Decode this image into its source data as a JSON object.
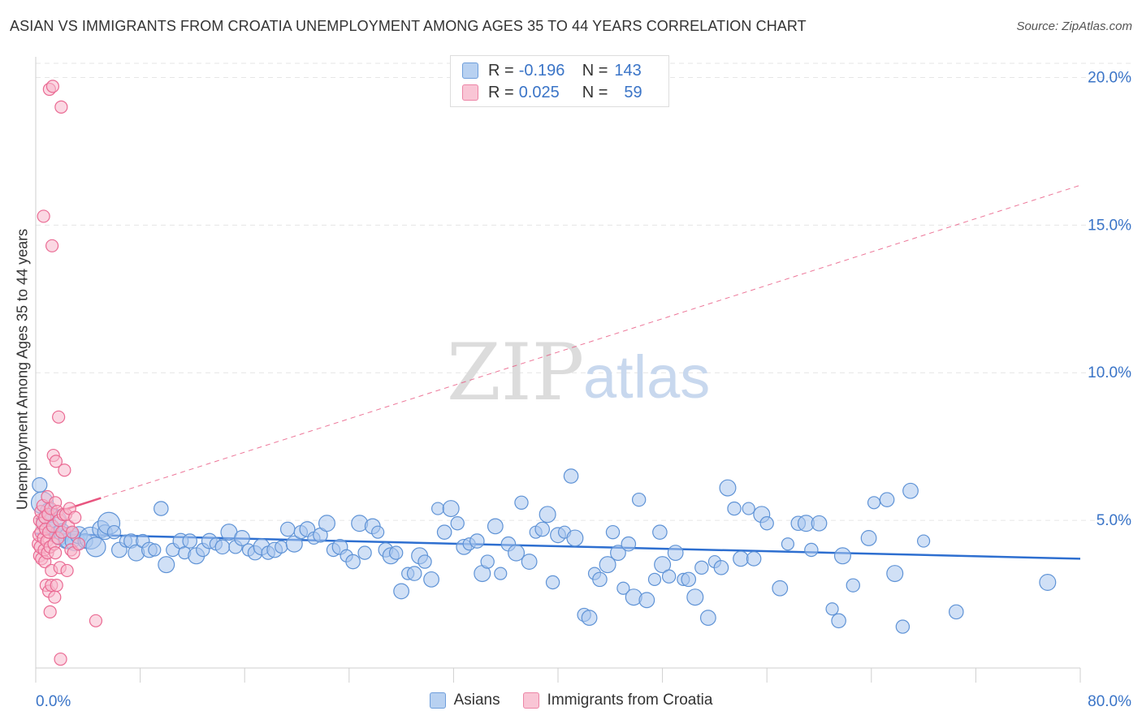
{
  "header": {
    "title": "ASIAN VS IMMIGRANTS FROM CROATIA UNEMPLOYMENT AMONG AGES 35 TO 44 YEARS CORRELATION CHART",
    "source": "Source: ZipAtlas.com"
  },
  "watermark": {
    "zip": "ZIP",
    "atlas": "atlas"
  },
  "legend_top": {
    "rows": [
      {
        "r_key": "R =",
        "r_value": "-0.196",
        "n_key": "N =",
        "n_value": "143"
      },
      {
        "r_key": "R =",
        "r_value": "0.025",
        "n_key": "N =",
        "n_value": "59"
      }
    ]
  },
  "legend_bottom": {
    "asians": "Asians",
    "croatia": "Immigrants from Croatia"
  },
  "colors": {
    "blue_fill": "#a9c7ee",
    "blue_stroke": "#5f93d6",
    "blue_line": "#2e6fd0",
    "pink_fill": "#f7b8cc",
    "pink_stroke": "#ea6a93",
    "pink_line": "#e8557f",
    "axis_text": "#3a74c7",
    "grid": "#e6e6e6"
  },
  "chart_data": {
    "type": "scatter",
    "title": "ASIAN VS IMMIGRANTS FROM CROATIA UNEMPLOYMENT AMONG AGES 35 TO 44 YEARS CORRELATION CHART",
    "xlabel": "",
    "ylabel": "Unemployment Among Ages 35 to 44 years",
    "xlim": [
      0,
      80
    ],
    "ylim": [
      0,
      20.7
    ],
    "x_tick_labels": {
      "min": "0.0%",
      "max": "80.0%"
    },
    "y_ticks": [
      5,
      10,
      15,
      20
    ],
    "y_tick_labels": [
      "5.0%",
      "10.0%",
      "15.0%",
      "20.0%"
    ],
    "series": [
      {
        "name": "Asians",
        "r": -0.196,
        "n": 143,
        "trend": {
          "x": [
            0,
            80
          ],
          "y": [
            4.55,
            3.7
          ],
          "style": "solid"
        },
        "points": [
          [
            0.3,
            6.2
          ],
          [
            0.5,
            5.6
          ],
          [
            0.8,
            4.9
          ],
          [
            1.0,
            5.3
          ],
          [
            1.3,
            4.7
          ],
          [
            1.5,
            5.0
          ],
          [
            1.8,
            4.5
          ],
          [
            2.0,
            4.6
          ],
          [
            2.3,
            4.3
          ],
          [
            2.6,
            4.4
          ],
          [
            3.0,
            4.3
          ],
          [
            3.3,
            4.5
          ],
          [
            3.8,
            4.3
          ],
          [
            4.2,
            4.4
          ],
          [
            4.6,
            4.1
          ],
          [
            5.0,
            4.7
          ],
          [
            5.3,
            4.6
          ],
          [
            5.6,
            4.9
          ],
          [
            6.0,
            4.6
          ],
          [
            6.4,
            4.0
          ],
          [
            6.9,
            4.3
          ],
          [
            7.3,
            4.3
          ],
          [
            7.7,
            3.9
          ],
          [
            8.2,
            4.3
          ],
          [
            8.7,
            4.0
          ],
          [
            9.1,
            4.0
          ],
          [
            9.6,
            5.4
          ],
          [
            10.0,
            3.5
          ],
          [
            10.5,
            4.0
          ],
          [
            11.1,
            4.3
          ],
          [
            11.4,
            3.9
          ],
          [
            11.8,
            4.3
          ],
          [
            12.3,
            3.8
          ],
          [
            12.8,
            4.0
          ],
          [
            13.3,
            4.3
          ],
          [
            13.8,
            4.2
          ],
          [
            14.3,
            4.1
          ],
          [
            14.8,
            4.6
          ],
          [
            15.3,
            4.1
          ],
          [
            15.8,
            4.4
          ],
          [
            16.3,
            4.0
          ],
          [
            16.8,
            3.9
          ],
          [
            17.3,
            4.1
          ],
          [
            17.8,
            3.9
          ],
          [
            18.3,
            4.0
          ],
          [
            18.8,
            4.1
          ],
          [
            19.3,
            4.7
          ],
          [
            19.8,
            4.2
          ],
          [
            20.3,
            4.6
          ],
          [
            20.8,
            4.7
          ],
          [
            21.3,
            4.4
          ],
          [
            21.8,
            4.5
          ],
          [
            22.3,
            4.9
          ],
          [
            22.8,
            4.0
          ],
          [
            23.3,
            4.1
          ],
          [
            23.8,
            3.8
          ],
          [
            24.3,
            3.6
          ],
          [
            24.8,
            4.9
          ],
          [
            25.2,
            3.9
          ],
          [
            25.8,
            4.8
          ],
          [
            26.2,
            4.6
          ],
          [
            26.8,
            4.0
          ],
          [
            27.2,
            3.8
          ],
          [
            27.6,
            3.9
          ],
          [
            28.0,
            2.6
          ],
          [
            28.5,
            3.2
          ],
          [
            29.0,
            3.2
          ],
          [
            29.4,
            3.8
          ],
          [
            29.8,
            3.6
          ],
          [
            30.3,
            3.0
          ],
          [
            30.8,
            5.4
          ],
          [
            31.3,
            4.6
          ],
          [
            31.8,
            5.4
          ],
          [
            32.3,
            4.9
          ],
          [
            32.8,
            4.1
          ],
          [
            33.2,
            4.2
          ],
          [
            33.8,
            4.3
          ],
          [
            34.2,
            3.2
          ],
          [
            34.6,
            3.6
          ],
          [
            35.2,
            4.8
          ],
          [
            35.6,
            3.2
          ],
          [
            36.2,
            4.2
          ],
          [
            36.8,
            3.9
          ],
          [
            37.2,
            5.6
          ],
          [
            37.8,
            3.6
          ],
          [
            38.3,
            4.6
          ],
          [
            38.8,
            4.7
          ],
          [
            39.2,
            5.2
          ],
          [
            39.6,
            2.9
          ],
          [
            40.0,
            4.5
          ],
          [
            40.5,
            4.6
          ],
          [
            41.0,
            6.5
          ],
          [
            41.3,
            4.4
          ],
          [
            42.0,
            1.8
          ],
          [
            42.4,
            1.7
          ],
          [
            42.8,
            3.2
          ],
          [
            43.2,
            3.0
          ],
          [
            43.8,
            3.5
          ],
          [
            44.2,
            4.6
          ],
          [
            44.6,
            3.9
          ],
          [
            45.0,
            2.7
          ],
          [
            45.4,
            4.2
          ],
          [
            45.8,
            2.4
          ],
          [
            46.2,
            5.7
          ],
          [
            46.8,
            2.3
          ],
          [
            47.4,
            3.0
          ],
          [
            47.8,
            4.6
          ],
          [
            48.0,
            3.5
          ],
          [
            48.5,
            3.1
          ],
          [
            49.0,
            3.9
          ],
          [
            49.6,
            3.0
          ],
          [
            50.0,
            3.0
          ],
          [
            50.5,
            2.4
          ],
          [
            51.0,
            3.4
          ],
          [
            51.5,
            1.7
          ],
          [
            52.0,
            3.6
          ],
          [
            52.5,
            3.4
          ],
          [
            53.0,
            6.1
          ],
          [
            53.5,
            5.4
          ],
          [
            54.0,
            3.7
          ],
          [
            54.6,
            5.4
          ],
          [
            55.0,
            3.7
          ],
          [
            55.6,
            5.2
          ],
          [
            56.0,
            4.9
          ],
          [
            57.0,
            2.7
          ],
          [
            57.6,
            4.2
          ],
          [
            58.4,
            4.9
          ],
          [
            59.0,
            4.9
          ],
          [
            59.4,
            4.0
          ],
          [
            60.0,
            4.9
          ],
          [
            61.0,
            2.0
          ],
          [
            61.5,
            1.6
          ],
          [
            61.8,
            3.8
          ],
          [
            62.6,
            2.8
          ],
          [
            63.8,
            4.4
          ],
          [
            64.2,
            5.6
          ],
          [
            65.2,
            5.7
          ],
          [
            65.8,
            3.2
          ],
          [
            66.4,
            1.4
          ],
          [
            67.0,
            6.0
          ],
          [
            68.0,
            4.3
          ],
          [
            70.5,
            1.9
          ],
          [
            77.5,
            2.9
          ]
        ]
      },
      {
        "name": "Immigrants from Croatia",
        "r": 0.025,
        "n": 59,
        "trend": {
          "x": [
            0,
            80
          ],
          "y": [
            5.05,
            16.35
          ],
          "style": "dashed",
          "solid_until_x": 5
        },
        "points": [
          [
            0.2,
            4.2
          ],
          [
            0.25,
            4.5
          ],
          [
            0.3,
            5.0
          ],
          [
            0.3,
            3.8
          ],
          [
            0.35,
            4.1
          ],
          [
            0.4,
            4.6
          ],
          [
            0.4,
            5.3
          ],
          [
            0.45,
            3.7
          ],
          [
            0.5,
            4.9
          ],
          [
            0.55,
            5.5
          ],
          [
            0.6,
            4.4
          ],
          [
            0.6,
            15.3
          ],
          [
            0.65,
            4.0
          ],
          [
            0.7,
            3.6
          ],
          [
            0.7,
            5.1
          ],
          [
            0.75,
            4.7
          ],
          [
            0.8,
            2.8
          ],
          [
            0.85,
            4.3
          ],
          [
            0.9,
            5.8
          ],
          [
            0.9,
            3.9
          ],
          [
            0.95,
            5.2
          ],
          [
            1.0,
            4.6
          ],
          [
            1.0,
            2.6
          ],
          [
            1.05,
            19.6
          ],
          [
            1.1,
            1.9
          ],
          [
            1.1,
            4.1
          ],
          [
            1.15,
            5.4
          ],
          [
            1.2,
            3.3
          ],
          [
            1.2,
            2.8
          ],
          [
            1.25,
            14.3
          ],
          [
            1.3,
            19.7
          ],
          [
            1.3,
            4.8
          ],
          [
            1.35,
            7.2
          ],
          [
            1.4,
            4.2
          ],
          [
            1.45,
            2.4
          ],
          [
            1.5,
            5.6
          ],
          [
            1.5,
            3.9
          ],
          [
            1.55,
            7.0
          ],
          [
            1.6,
            2.8
          ],
          [
            1.65,
            5.3
          ],
          [
            1.7,
            4.4
          ],
          [
            1.75,
            8.5
          ],
          [
            1.8,
            5.0
          ],
          [
            1.85,
            3.4
          ],
          [
            1.9,
            0.3
          ],
          [
            1.95,
            19.0
          ],
          [
            2.0,
            4.6
          ],
          [
            2.1,
            5.2
          ],
          [
            2.2,
            6.7
          ],
          [
            2.3,
            5.2
          ],
          [
            2.4,
            3.3
          ],
          [
            2.5,
            4.8
          ],
          [
            2.6,
            5.4
          ],
          [
            2.7,
            4.0
          ],
          [
            2.8,
            4.6
          ],
          [
            2.9,
            3.9
          ],
          [
            3.0,
            5.1
          ],
          [
            3.3,
            4.2
          ],
          [
            4.6,
            1.6
          ]
        ]
      }
    ]
  }
}
